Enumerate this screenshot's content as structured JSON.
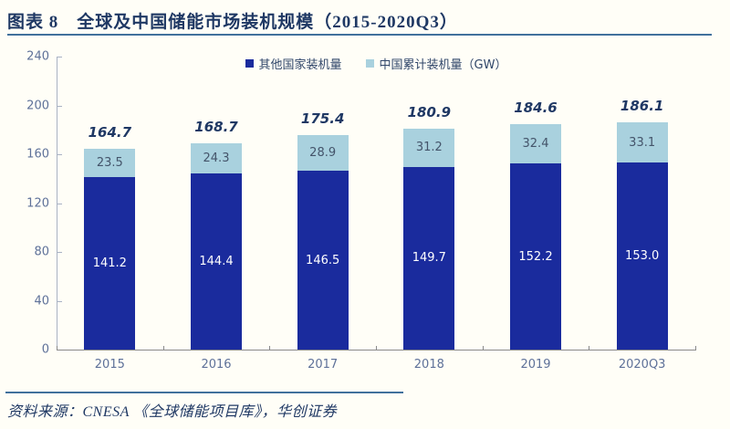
{
  "header": {
    "title": "图表 8　全球及中国储能市场装机规模（2015-2020Q3）"
  },
  "chart_data": {
    "type": "bar",
    "stacked": true,
    "categories": [
      "2015",
      "2016",
      "2017",
      "2018",
      "2019",
      "2020Q3"
    ],
    "series": [
      {
        "name": "其他国家装机量",
        "color": "#1a2b9d",
        "label_color": "#ffffff",
        "values": [
          141.2,
          144.4,
          146.5,
          149.7,
          152.2,
          153.0
        ]
      },
      {
        "name": "中国累计装机量（GW）",
        "color": "#a9d1de",
        "label_color": "#44546a",
        "values": [
          23.5,
          24.3,
          28.9,
          31.2,
          32.4,
          33.1
        ]
      }
    ],
    "totals": [
      164.7,
      168.7,
      175.4,
      180.9,
      184.6,
      186.1
    ],
    "title": "全球及中国储能市场装机规模（2015-2020Q3）",
    "xlabel": "",
    "ylabel": "",
    "ylim": [
      0,
      240
    ],
    "ytick_step": 40,
    "grid": false,
    "legend_position": "top-center",
    "accent_colors": {
      "title_text": "#1f3864",
      "rule": "#41719c",
      "axis_label": "#5e7199"
    }
  },
  "footer": {
    "source": "资料来源：CNESA 《全球储能项目库》，华创证券"
  }
}
